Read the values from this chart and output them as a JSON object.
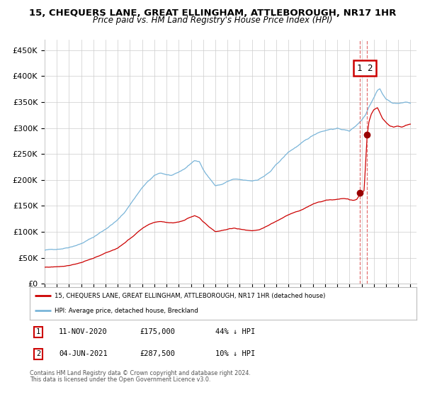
{
  "title": "15, CHEQUERS LANE, GREAT ELLINGHAM, ATTLEBOROUGH, NR17 1HR",
  "subtitle": "Price paid vs. HM Land Registry's House Price Index (HPI)",
  "ylabel_ticks": [
    "£0",
    "£50K",
    "£100K",
    "£150K",
    "£200K",
    "£250K",
    "£300K",
    "£350K",
    "£400K",
    "£450K"
  ],
  "ytick_values": [
    0,
    50000,
    100000,
    150000,
    200000,
    250000,
    300000,
    350000,
    400000,
    450000
  ],
  "ylim": [
    0,
    470000
  ],
  "xlim_start": 1995.0,
  "xlim_end": 2025.5,
  "xtick_years": [
    1995,
    1996,
    1997,
    1998,
    1999,
    2000,
    2001,
    2002,
    2003,
    2004,
    2005,
    2006,
    2007,
    2008,
    2009,
    2010,
    2011,
    2012,
    2013,
    2014,
    2015,
    2016,
    2017,
    2018,
    2019,
    2020,
    2021,
    2022,
    2023,
    2024,
    2025
  ],
  "hpi_color": "#7ab5d9",
  "price_color": "#cc0000",
  "dashed_line_color": "#e06060",
  "marker_color": "#990000",
  "grid_color": "#cccccc",
  "bg_color": "#ffffff",
  "sale1_date_x": 2020.87,
  "sale1_price": 175000,
  "sale2_date_x": 2021.45,
  "sale2_price": 287500,
  "legend_line1": "15, CHEQUERS LANE, GREAT ELLINGHAM, ATTLEBOROUGH, NR17 1HR (detached house)",
  "legend_line2": "HPI: Average price, detached house, Breckland",
  "table_row1": [
    "1",
    "11-NOV-2020",
    "£175,000",
    "44% ↓ HPI"
  ],
  "table_row2": [
    "2",
    "04-JUN-2021",
    "£287,500",
    "10% ↓ HPI"
  ],
  "footer1": "Contains HM Land Registry data © Crown copyright and database right 2024.",
  "footer2": "This data is licensed under the Open Government Licence v3.0."
}
